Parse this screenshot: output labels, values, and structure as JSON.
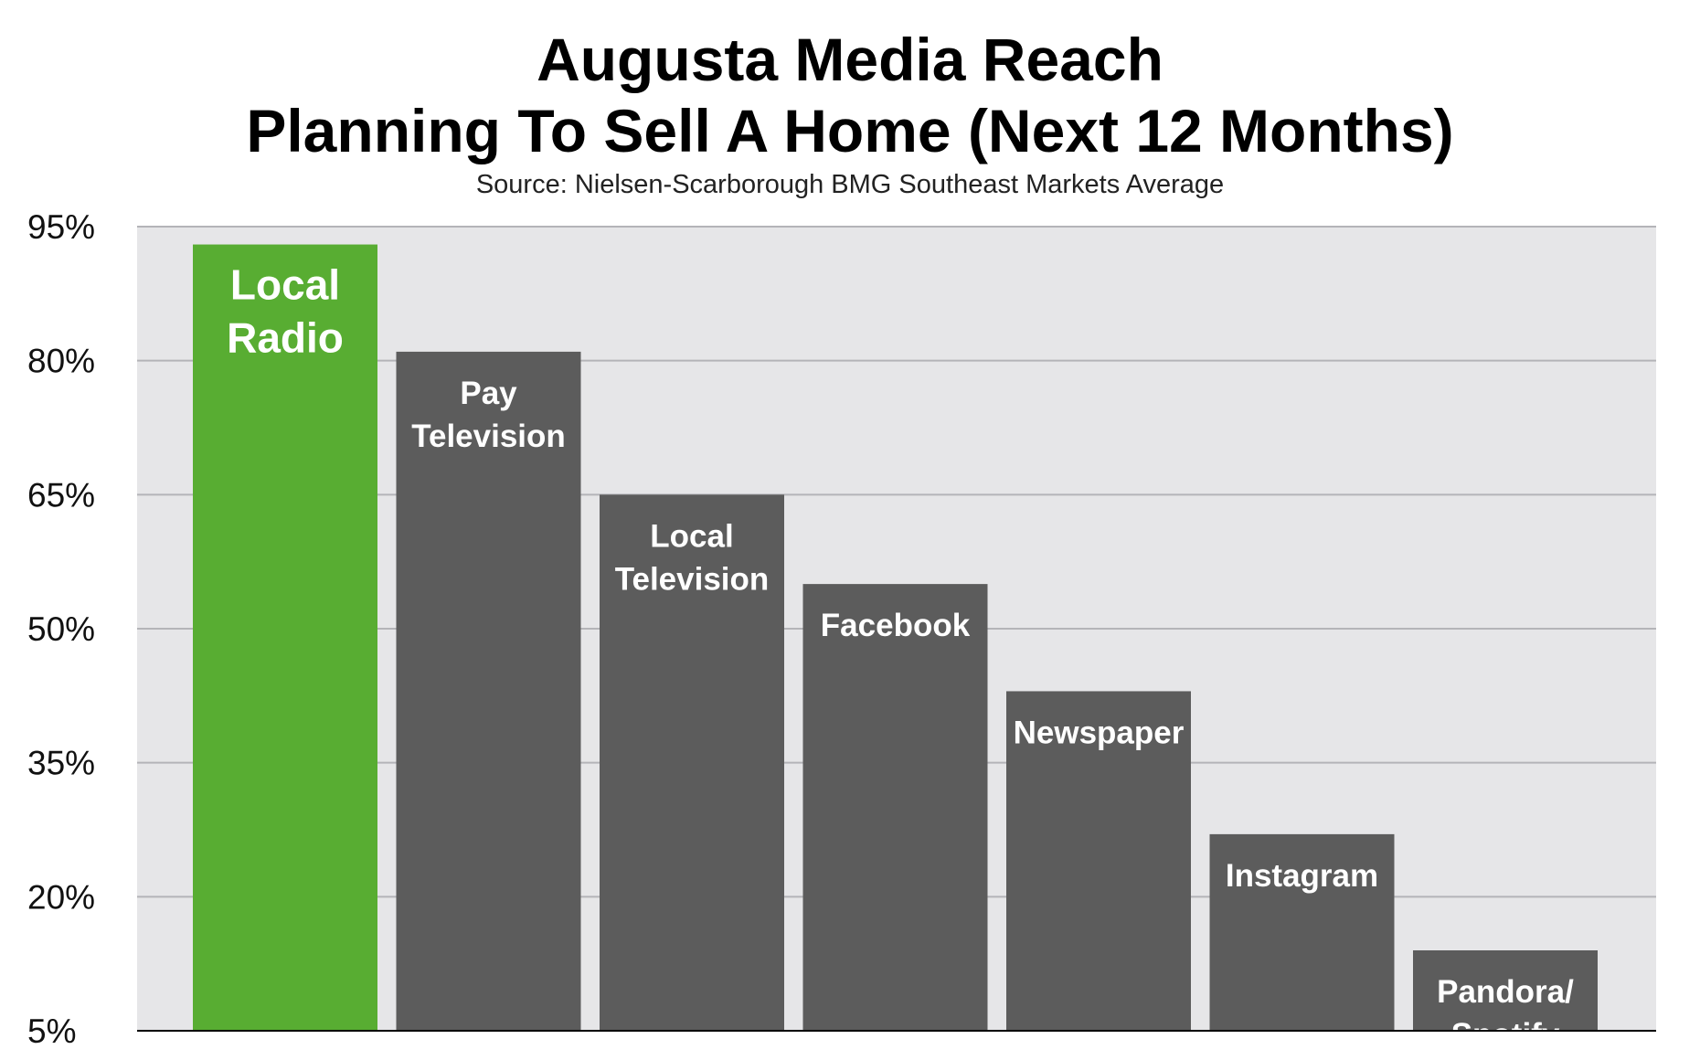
{
  "chart_data": {
    "type": "bar",
    "title": [
      "Augusta Media Reach",
      "Planning To Sell A Home (Next 12 Months)"
    ],
    "subtitle": "Source: Nielsen-Scarborough BMG Southeast Markets Average",
    "xlabel": "",
    "ylabel": "",
    "ylim": [
      5,
      95
    ],
    "yticks": [
      5,
      20,
      35,
      50,
      65,
      80,
      95
    ],
    "ytick_labels": [
      "5%",
      "20%",
      "35%",
      "50%",
      "65%",
      "80%",
      "95%"
    ],
    "grid": true,
    "legend": "none",
    "categories": [
      [
        "Local",
        "Radio"
      ],
      [
        "Pay",
        "Television"
      ],
      [
        "Local",
        "Television"
      ],
      [
        "Facebook"
      ],
      [
        "Newspaper"
      ],
      [
        "Instagram"
      ],
      [
        "Pandora/",
        "Spotify"
      ]
    ],
    "values": [
      93,
      81,
      65,
      55,
      43,
      27,
      14
    ],
    "colors": [
      "#58ad32",
      "#5c5c5c",
      "#5c5c5c",
      "#5c5c5c",
      "#5c5c5c",
      "#5c5c5c",
      "#5c5c5c"
    ],
    "plot_background": "#e6e6e8",
    "gridline_color": "#b4b4b8"
  }
}
